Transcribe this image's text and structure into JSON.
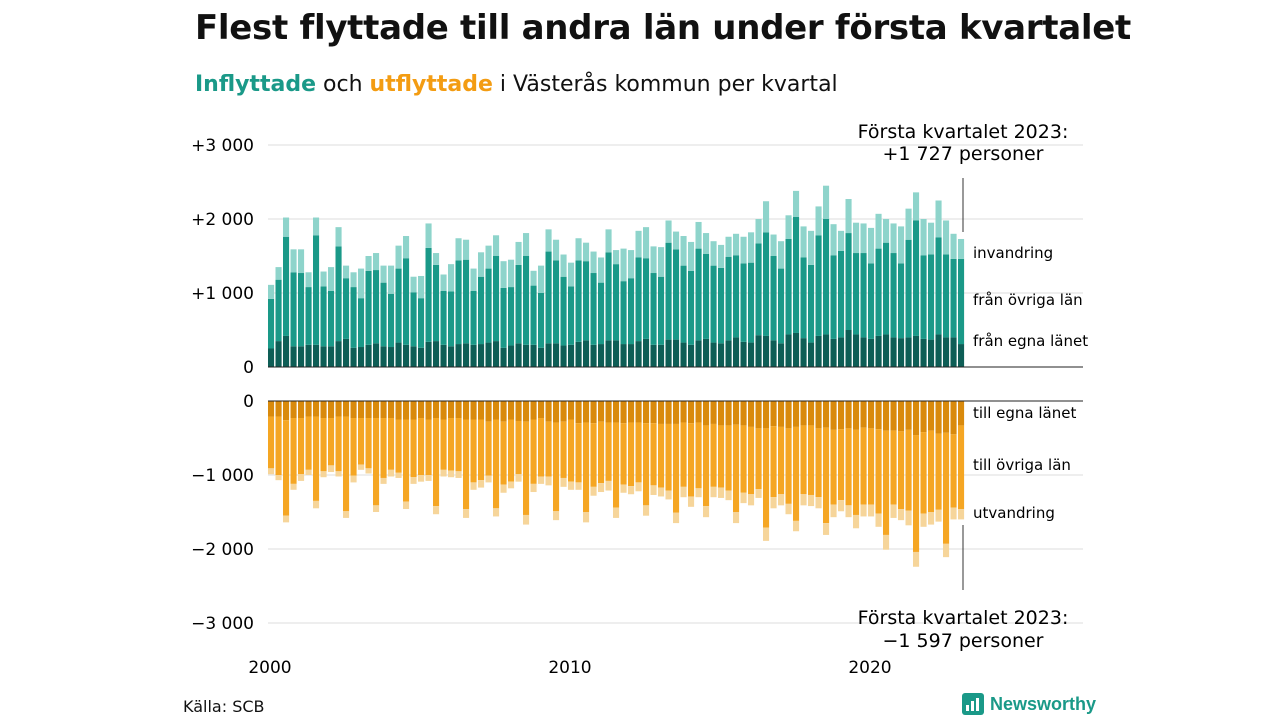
{
  "title": "Flest flyttade till andra län under första kvartalet",
  "subtitle": {
    "in_word": "Inflyttade",
    "and_word": "och",
    "out_word": "utflyttade",
    "rest": "i Västerås kommun per kvartal"
  },
  "source": "Källa: SCB",
  "logo_text": "Newsworthy",
  "colors": {
    "in_egna": "#0e5e56",
    "in_ovriga": "#1a9988",
    "in_invandring": "#8ed4cb",
    "out_egna": "#d98a0c",
    "out_ovriga": "#f5a623",
    "out_utvandring": "#f6d59a",
    "in_text": "#1a9988",
    "out_text": "#f39c12"
  },
  "annotations": {
    "top_line1": "Första kvartalet 2023:",
    "top_line2": "+1 727 personer",
    "bottom_line1": "Första kvartalet 2023:",
    "bottom_line2": "−1 597 personer"
  },
  "chart_data": {
    "type": "bar",
    "stacked": true,
    "x_start": "2000 Q1",
    "x_end": "2023 Q1",
    "x_ticks": [
      {
        "value": 2000,
        "label": "2000"
      },
      {
        "value": 2010,
        "label": "2010"
      },
      {
        "value": 2020,
        "label": "2020"
      }
    ],
    "top_ylim": [
      0,
      3000
    ],
    "top_yticks": [
      {
        "value": 0,
        "label": "0"
      },
      {
        "value": 1000,
        "label": "+1 000"
      },
      {
        "value": 2000,
        "label": "+2 000"
      },
      {
        "value": 3000,
        "label": "+3 000"
      }
    ],
    "bottom_ylim": [
      -3000,
      0
    ],
    "bottom_yticks": [
      {
        "value": 0,
        "label": "0"
      },
      {
        "value": -1000,
        "label": "−1 000"
      },
      {
        "value": -2000,
        "label": "−2 000"
      },
      {
        "value": -3000,
        "label": "−3 000"
      }
    ],
    "grid": true,
    "inflyttade_series": [
      {
        "name": "från egna länet",
        "values": [
          250,
          350,
          420,
          280,
          280,
          300,
          300,
          280,
          280,
          350,
          380,
          260,
          270,
          300,
          320,
          280,
          270,
          330,
          300,
          280,
          260,
          340,
          350,
          300,
          280,
          310,
          320,
          300,
          310,
          330,
          350,
          260,
          290,
          320,
          300,
          300,
          260,
          320,
          320,
          290,
          300,
          340,
          360,
          300,
          310,
          360,
          360,
          310,
          310,
          350,
          380,
          300,
          300,
          370,
          370,
          330,
          300,
          360,
          380,
          330,
          320,
          360,
          400,
          340,
          330,
          430,
          420,
          360,
          320,
          440,
          460,
          390,
          330,
          420,
          440,
          380,
          400,
          500,
          440,
          400,
          380,
          420,
          440,
          400,
          390,
          400,
          420,
          380,
          370,
          440,
          400,
          400,
          310
        ]
      },
      {
        "name": "från övriga län",
        "values": [
          670,
          830,
          1340,
          1000,
          990,
          780,
          1480,
          810,
          750,
          1280,
          820,
          820,
          660,
          1000,
          990,
          860,
          720,
          1000,
          1170,
          730,
          670,
          1270,
          1030,
          730,
          740,
          1130,
          1130,
          730,
          910,
          1000,
          1150,
          810,
          790,
          1060,
          1200,
          800,
          740,
          1240,
          1120,
          930,
          790,
          1100,
          1070,
          970,
          830,
          1190,
          1030,
          850,
          890,
          1130,
          1090,
          970,
          920,
          1310,
          1220,
          1040,
          1000,
          1240,
          1150,
          1040,
          1020,
          1130,
          1110,
          1060,
          1080,
          1240,
          1400,
          1140,
          1010,
          1290,
          1570,
          1090,
          1050,
          1360,
          1560,
          1130,
          1170,
          1310,
          1100,
          1140,
          1020,
          1180,
          1240,
          1140,
          1010,
          1320,
          1560,
          1130,
          1150,
          1310,
          1120,
          1060,
          1150
        ]
      },
      {
        "name": "invandring",
        "values": [
          190,
          170,
          260,
          310,
          320,
          200,
          240,
          200,
          320,
          260,
          170,
          200,
          400,
          200,
          230,
          230,
          380,
          310,
          300,
          210,
          300,
          330,
          160,
          220,
          370,
          300,
          270,
          300,
          330,
          310,
          280,
          360,
          370,
          310,
          310,
          200,
          370,
          300,
          280,
          300,
          320,
          300,
          250,
          290,
          340,
          310,
          190,
          440,
          380,
          360,
          420,
          360,
          400,
          300,
          240,
          400,
          390,
          360,
          280,
          330,
          310,
          270,
          290,
          360,
          410,
          330,
          420,
          290,
          370,
          320,
          350,
          420,
          460,
          390,
          450,
          420,
          270,
          460,
          410,
          400,
          480,
          470,
          320,
          400,
          500,
          420,
          380,
          490,
          430,
          500,
          460,
          340,
          270
        ]
      }
    ],
    "utflyttade_series": [
      {
        "name": "till egna länet",
        "values": [
          -210,
          -210,
          -260,
          -230,
          -230,
          -210,
          -210,
          -230,
          -230,
          -210,
          -210,
          -230,
          -230,
          -230,
          -230,
          -230,
          -230,
          -250,
          -250,
          -250,
          -230,
          -250,
          -230,
          -250,
          -230,
          -230,
          -250,
          -250,
          -250,
          -280,
          -250,
          -280,
          -250,
          -270,
          -280,
          -250,
          -230,
          -280,
          -290,
          -280,
          -250,
          -300,
          -290,
          -300,
          -280,
          -290,
          -290,
          -300,
          -290,
          -290,
          -300,
          -300,
          -310,
          -310,
          -310,
          -290,
          -300,
          -290,
          -330,
          -310,
          -330,
          -330,
          -320,
          -330,
          -350,
          -370,
          -370,
          -340,
          -350,
          -370,
          -350,
          -330,
          -330,
          -370,
          -360,
          -390,
          -380,
          -370,
          -390,
          -360,
          -370,
          -380,
          -400,
          -400,
          -410,
          -390,
          -460,
          -420,
          -400,
          -440,
          -430,
          -450,
          -330
        ]
      },
      {
        "name": "till övriga län",
        "values": [
          -700,
          -790,
          -1290,
          -890,
          -760,
          -720,
          -1140,
          -720,
          -640,
          -740,
          -1280,
          -780,
          -630,
          -680,
          -1180,
          -810,
          -700,
          -720,
          -1110,
          -780,
          -770,
          -750,
          -1190,
          -680,
          -710,
          -720,
          -1210,
          -850,
          -820,
          -730,
          -1200,
          -850,
          -840,
          -720,
          -1260,
          -870,
          -790,
          -740,
          -1200,
          -760,
          -840,
          -800,
          -1210,
          -860,
          -830,
          -790,
          -1150,
          -830,
          -860,
          -810,
          -1110,
          -840,
          -860,
          -900,
          -1200,
          -870,
          -990,
          -890,
          -1090,
          -850,
          -840,
          -880,
          -1180,
          -910,
          -910,
          -820,
          -1340,
          -960,
          -910,
          -1020,
          -1270,
          -930,
          -940,
          -930,
          -1290,
          -1010,
          -960,
          -1040,
          -1150,
          -1040,
          -1030,
          -1140,
          -1410,
          -1000,
          -1050,
          -1090,
          -1580,
          -1100,
          -1100,
          -1030,
          -1500,
          -990,
          -1130
        ]
      },
      {
        "name": "utvandring",
        "values": [
          -80,
          -70,
          -90,
          -80,
          -90,
          -70,
          -100,
          -80,
          -90,
          -70,
          -90,
          -90,
          -70,
          -70,
          -90,
          -80,
          -90,
          -70,
          -100,
          -90,
          -90,
          -80,
          -110,
          -90,
          -90,
          -90,
          -120,
          -100,
          -100,
          -90,
          -110,
          -110,
          -90,
          -100,
          -130,
          -110,
          -100,
          -120,
          -120,
          -120,
          -110,
          -100,
          -140,
          -120,
          -120,
          -130,
          -140,
          -110,
          -110,
          -120,
          -140,
          -130,
          -120,
          -120,
          -140,
          -140,
          -140,
          -120,
          -150,
          -140,
          -140,
          -130,
          -150,
          -140,
          -150,
          -120,
          -180,
          -150,
          -150,
          -140,
          -140,
          -150,
          -150,
          -150,
          -160,
          -170,
          -150,
          -160,
          -180,
          -160,
          -160,
          -180,
          -200,
          -180,
          -150,
          -200,
          -200,
          -180,
          -170,
          -160,
          -180,
          -160,
          -140
        ]
      }
    ]
  }
}
